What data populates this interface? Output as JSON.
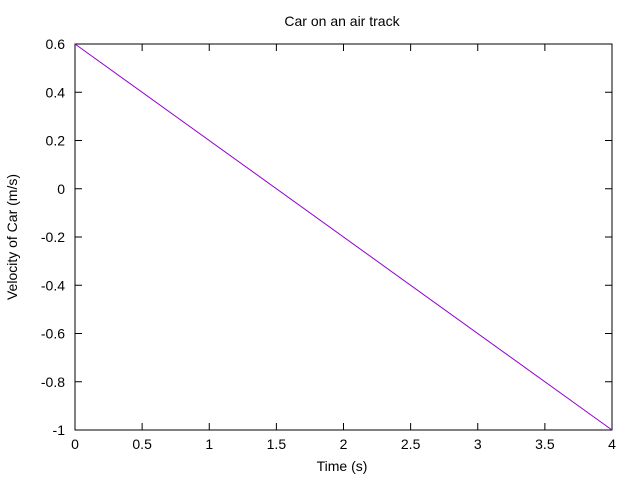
{
  "chart_data": {
    "type": "line",
    "title": "Car on an air track",
    "xlabel": "Time (s)",
    "ylabel": "Velocity of Car (m/s)",
    "xlim": [
      0,
      4
    ],
    "ylim": [
      -1,
      0.6
    ],
    "x_ticks": [
      0,
      0.5,
      1,
      1.5,
      2,
      2.5,
      3,
      3.5,
      4
    ],
    "x_tick_labels": [
      "0",
      "0.5",
      "1",
      "1.5",
      "2",
      "2.5",
      "3",
      "3.5",
      "4"
    ],
    "y_ticks": [
      0.6,
      0.4,
      0.2,
      0,
      -0.2,
      -0.4,
      -0.6,
      -0.8,
      -1
    ],
    "y_tick_labels": [
      "0.6",
      "0.4",
      "0.2",
      "0",
      "-0.2",
      "-0.4",
      "-0.6",
      "-0.8",
      "-1"
    ],
    "grid": false,
    "series": [
      {
        "color": "#9400d3",
        "x": [
          0,
          4
        ],
        "y": [
          0.6,
          -1
        ]
      }
    ]
  }
}
